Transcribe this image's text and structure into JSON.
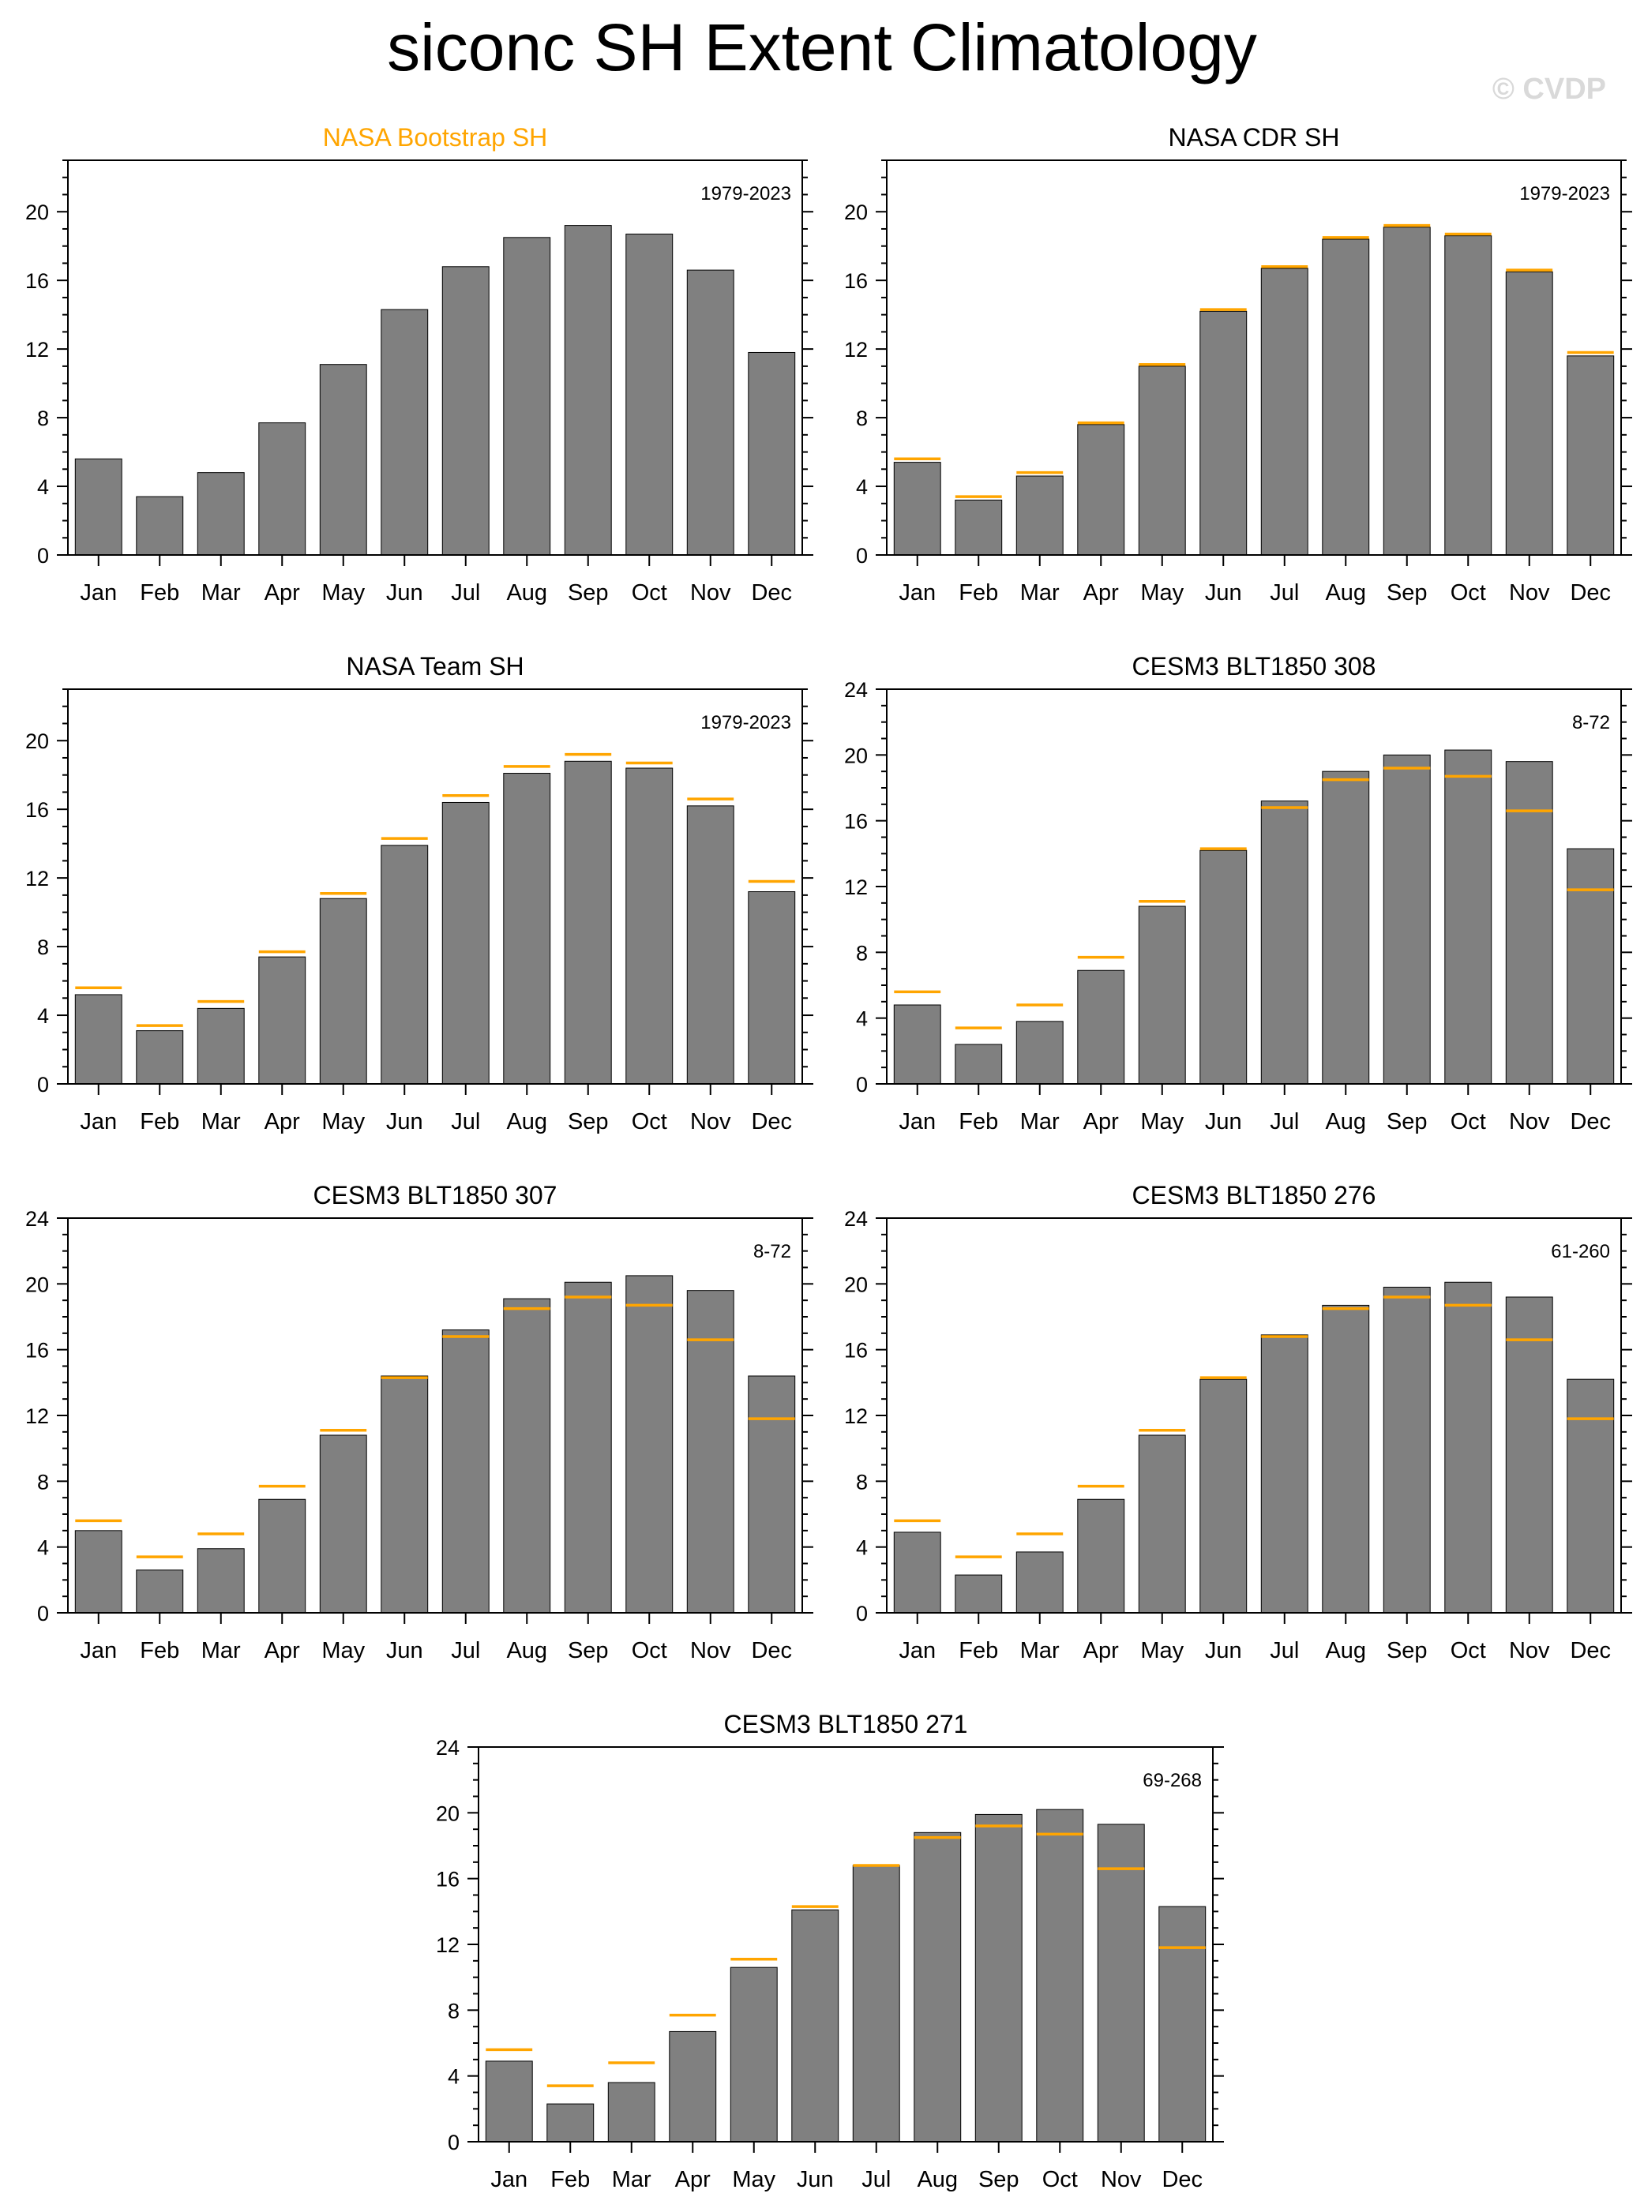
{
  "page": {
    "title": "siconc SH Extent Climatology",
    "watermark": "© CVDP"
  },
  "colors": {
    "bar": "#808080",
    "bar_edge": "#000000",
    "obs_marker": "#ffa500",
    "highlight_title": "#ffa500"
  },
  "months": [
    "Jan",
    "Feb",
    "Mar",
    "Apr",
    "May",
    "Jun",
    "Jul",
    "Aug",
    "Sep",
    "Oct",
    "Nov",
    "Dec"
  ],
  "reference": [
    5.6,
    3.4,
    4.8,
    7.7,
    11.1,
    14.3,
    16.8,
    18.5,
    19.2,
    18.7,
    16.6,
    11.8
  ],
  "chart_data": [
    {
      "type": "bar",
      "title": "NASA Bootstrap SH",
      "title_highlight": true,
      "period": "1979-2023",
      "ylim": [
        0,
        23
      ],
      "yticks": [
        0,
        4,
        8,
        12,
        16,
        20
      ],
      "values": [
        5.6,
        3.4,
        4.8,
        7.7,
        11.1,
        14.3,
        16.8,
        18.5,
        19.2,
        18.7,
        16.6,
        11.8
      ],
      "show_reference": false
    },
    {
      "type": "bar",
      "title": "NASA CDR SH",
      "title_highlight": false,
      "period": "1979-2023",
      "ylim": [
        0,
        23
      ],
      "yticks": [
        0,
        4,
        8,
        12,
        16,
        20
      ],
      "values": [
        5.4,
        3.2,
        4.6,
        7.6,
        11.0,
        14.2,
        16.7,
        18.4,
        19.1,
        18.6,
        16.5,
        11.6
      ],
      "show_reference": true
    },
    {
      "type": "bar",
      "title": "NASA Team SH",
      "title_highlight": false,
      "period": "1979-2023",
      "ylim": [
        0,
        23
      ],
      "yticks": [
        0,
        4,
        8,
        12,
        16,
        20
      ],
      "values": [
        5.2,
        3.1,
        4.4,
        7.4,
        10.8,
        13.9,
        16.4,
        18.1,
        18.8,
        18.4,
        16.2,
        11.2
      ],
      "show_reference": true
    },
    {
      "type": "bar",
      "title": "CESM3 BLT1850 308",
      "title_highlight": false,
      "period": "8-72",
      "ylim": [
        0,
        24
      ],
      "yticks": [
        0,
        4,
        8,
        12,
        16,
        20,
        24
      ],
      "values": [
        4.8,
        2.4,
        3.8,
        6.9,
        10.8,
        14.2,
        17.2,
        19.0,
        20.0,
        20.3,
        19.6,
        14.3
      ],
      "show_reference": true
    },
    {
      "type": "bar",
      "title": "CESM3 BLT1850 307",
      "title_highlight": false,
      "period": "8-72",
      "ylim": [
        0,
        24
      ],
      "yticks": [
        0,
        4,
        8,
        12,
        16,
        20,
        24
      ],
      "values": [
        5.0,
        2.6,
        3.9,
        6.9,
        10.8,
        14.4,
        17.2,
        19.1,
        20.1,
        20.5,
        19.6,
        14.4
      ],
      "show_reference": true
    },
    {
      "type": "bar",
      "title": "CESM3 BLT1850 276",
      "title_highlight": false,
      "period": "61-260",
      "ylim": [
        0,
        24
      ],
      "yticks": [
        0,
        4,
        8,
        12,
        16,
        20,
        24
      ],
      "values": [
        4.9,
        2.3,
        3.7,
        6.9,
        10.8,
        14.2,
        16.9,
        18.7,
        19.8,
        20.1,
        19.2,
        14.2
      ],
      "show_reference": true
    },
    {
      "type": "bar",
      "title": "CESM3 BLT1850 271",
      "title_highlight": false,
      "period": "69-268",
      "ylim": [
        0,
        24
      ],
      "yticks": [
        0,
        4,
        8,
        12,
        16,
        20,
        24
      ],
      "values": [
        4.9,
        2.3,
        3.6,
        6.7,
        10.6,
        14.1,
        16.8,
        18.8,
        19.9,
        20.2,
        19.3,
        14.3
      ],
      "show_reference": true
    }
  ]
}
